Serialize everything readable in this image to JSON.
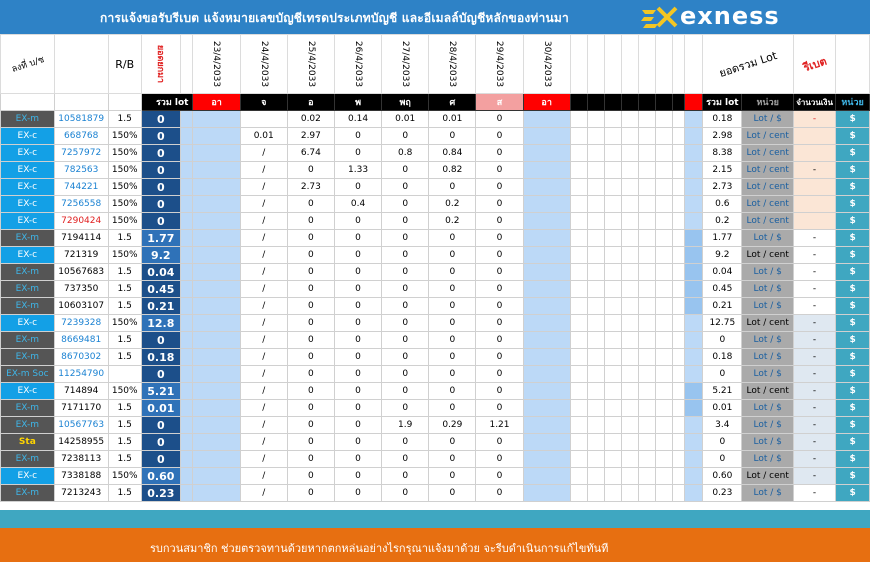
{
  "header": {
    "title": "การแจ้งขอรับรีเบต  แจ้งหมายเลขบัญชีเทรดประเภทบัญชี  และอีเมลล์บัญชีหลักของท่านมา",
    "brand": "exness",
    "logo_icon": "exness-logo-icon"
  },
  "columns": {
    "type": "ลงที่ บ/ช",
    "rb": "R/B",
    "balance": "ยอดยกมา",
    "dates": [
      "23/4/2033",
      "24/4/2033",
      "25/4/2033",
      "26/4/2033",
      "27/4/2033",
      "28/4/2033",
      "29/4/2033",
      "30/4/2033"
    ],
    "total_lot_vertical": "ยอดรวม Lot",
    "rebate": "รีเบต",
    "sub": {
      "sum_lot": "รวม lot",
      "days": [
        "อา",
        "จ",
        "อ",
        "พ",
        "พฤ",
        "ศ",
        "ส",
        "อา"
      ],
      "sum_lot2": "รวม lot",
      "unit": "หน่วย",
      "amount": "จำนวนเงิน",
      "unit2": "หน่วย"
    }
  },
  "rows": [
    {
      "type": "EX-m",
      "acct": "10581879",
      "rb": "1.5",
      "total": "0",
      "d": [
        "",
        "",
        "0.02",
        "0.14",
        "0.01",
        "0.01",
        "0",
        ""
      ],
      "sum": "0.18",
      "unit": "Lot / $",
      "amt": "-",
      "cur": "$"
    },
    {
      "type": "EX-c",
      "acct": "668768",
      "rb": "150%",
      "total": "0",
      "d": [
        "",
        "0.01",
        "2.97",
        "0",
        "0",
        "0",
        "0",
        ""
      ],
      "sum": "2.98",
      "unit": "Lot / cent",
      "amt": "",
      "cur": "$"
    },
    {
      "type": "EX-c",
      "acct": "7257972",
      "rb": "150%",
      "total": "0",
      "d": [
        "",
        "/",
        "6.74",
        "0",
        "0.8",
        "0.84",
        "0",
        ""
      ],
      "sum": "8.38",
      "unit": "Lot / cent",
      "amt": "",
      "cur": "$"
    },
    {
      "type": "EX-c",
      "acct": "782563",
      "rb": "150%",
      "total": "0",
      "d": [
        "",
        "/",
        "0",
        "1.33",
        "0",
        "0.82",
        "0",
        ""
      ],
      "sum": "2.15",
      "unit": "Lot / cent",
      "amt": "-",
      "cur": "$"
    },
    {
      "type": "EX-c",
      "acct": "744221",
      "rb": "150%",
      "total": "0",
      "d": [
        "",
        "/",
        "2.73",
        "0",
        "0",
        "0",
        "0",
        ""
      ],
      "sum": "2.73",
      "unit": "Lot / cent",
      "amt": "",
      "cur": "$"
    },
    {
      "type": "EX-c",
      "acct": "7256558",
      "rb": "150%",
      "total": "0",
      "d": [
        "",
        "/",
        "0",
        "0.4",
        "0",
        "0.2",
        "0",
        ""
      ],
      "sum": "0.6",
      "unit": "Lot / cent",
      "amt": "",
      "cur": "$"
    },
    {
      "type": "EX-c",
      "acct": "7290424",
      "rb": "150%",
      "total": "0",
      "d": [
        "",
        "/",
        "0",
        "0",
        "0",
        "0.2",
        "0",
        ""
      ],
      "sum": "0.2",
      "unit": "Lot / cent",
      "amt": "",
      "cur": "$"
    },
    {
      "type": "EX-m",
      "acct": "7194114",
      "rb": "1.5",
      "total": "1.77",
      "d": [
        "",
        "/",
        "0",
        "0",
        "0",
        "0",
        "0",
        ""
      ],
      "sum": "1.77",
      "unit": "Lot / $",
      "amt": "-",
      "cur": "$"
    },
    {
      "type": "EX-c",
      "acct": "721319",
      "rb": "150%",
      "total": "9.2",
      "d": [
        "",
        "/",
        "0",
        "0",
        "0",
        "0",
        "0",
        ""
      ],
      "sum": "9.2",
      "unit": "Lot / cent",
      "amt": "-",
      "cur": "$"
    },
    {
      "type": "EX-m",
      "acct": "10567683",
      "rb": "1.5",
      "total": "0.04",
      "d": [
        "",
        "/",
        "0",
        "0",
        "0",
        "0",
        "0",
        ""
      ],
      "sum": "0.04",
      "unit": "Lot / $",
      "amt": "-",
      "cur": "$"
    },
    {
      "type": "EX-m",
      "acct": "737350",
      "rb": "1.5",
      "total": "0.45",
      "d": [
        "",
        "/",
        "0",
        "0",
        "0",
        "0",
        "0",
        ""
      ],
      "sum": "0.45",
      "unit": "Lot / $",
      "amt": "-",
      "cur": "$"
    },
    {
      "type": "EX-m",
      "acct": "10603107",
      "rb": "1.5",
      "total": "0.21",
      "d": [
        "",
        "/",
        "0",
        "0",
        "0",
        "0",
        "0",
        ""
      ],
      "sum": "0.21",
      "unit": "Lot / $",
      "amt": "-",
      "cur": "$"
    },
    {
      "type": "EX-c",
      "acct": "7239328",
      "rb": "150%",
      "total": "12.8",
      "d": [
        "",
        "/",
        "0",
        "0",
        "0",
        "0",
        "0",
        ""
      ],
      "sum": "12.75",
      "unit": "Lot / cent",
      "amt": "-",
      "cur": "$"
    },
    {
      "type": "EX-m",
      "acct": "8669481",
      "rb": "1.5",
      "total": "0",
      "d": [
        "",
        "/",
        "0",
        "0",
        "0",
        "0",
        "0",
        ""
      ],
      "sum": "0",
      "unit": "Lot / $",
      "amt": "-",
      "cur": "$"
    },
    {
      "type": "EX-m",
      "acct": "8670302",
      "rb": "1.5",
      "total": "0.18",
      "d": [
        "",
        "/",
        "0",
        "0",
        "0",
        "0",
        "0",
        ""
      ],
      "sum": "0.18",
      "unit": "Lot / $",
      "amt": "-",
      "cur": "$"
    },
    {
      "type": "EX-m Soc",
      "acct": "11254790",
      "rb": "",
      "total": "0",
      "d": [
        "",
        "/",
        "0",
        "0",
        "0",
        "0",
        "0",
        ""
      ],
      "sum": "0",
      "unit": "Lot / $",
      "amt": "-",
      "cur": "$"
    },
    {
      "type": "EX-c",
      "acct": "714894",
      "rb": "150%",
      "total": "5.21",
      "d": [
        "",
        "/",
        "0",
        "0",
        "0",
        "0",
        "0",
        ""
      ],
      "sum": "5.21",
      "unit": "Lot / cent",
      "amt": "-",
      "cur": "$"
    },
    {
      "type": "EX-m",
      "acct": "7171170",
      "rb": "1.5",
      "total": "0.01",
      "d": [
        "",
        "/",
        "0",
        "0",
        "0",
        "0",
        "0",
        ""
      ],
      "sum": "0.01",
      "unit": "Lot / $",
      "amt": "-",
      "cur": "$"
    },
    {
      "type": "EX-m",
      "acct": "10567763",
      "rb": "1.5",
      "total": "0",
      "d": [
        "",
        "/",
        "0",
        "0",
        "1.9",
        "0.29",
        "1.21",
        ""
      ],
      "sum": "3.4",
      "unit": "Lot / $",
      "amt": "-",
      "cur": "$"
    },
    {
      "type": "Sta",
      "acct": "14258955",
      "rb": "1.5",
      "total": "0",
      "d": [
        "",
        "/",
        "0",
        "0",
        "0",
        "0",
        "0",
        ""
      ],
      "sum": "0",
      "unit": "Lot / $",
      "amt": "-",
      "cur": "$"
    },
    {
      "type": "EX-m",
      "acct": "7238113",
      "rb": "1.5",
      "total": "0",
      "d": [
        "",
        "/",
        "0",
        "0",
        "0",
        "0",
        "0",
        ""
      ],
      "sum": "0",
      "unit": "Lot / $",
      "amt": "-",
      "cur": "$"
    },
    {
      "type": "EX-c",
      "acct": "7338188",
      "rb": "150%",
      "total": "0.60",
      "d": [
        "",
        "/",
        "0",
        "0",
        "0",
        "0",
        "0",
        ""
      ],
      "sum": "0.60",
      "unit": "Lot / cent",
      "amt": "-",
      "cur": "$"
    },
    {
      "type": "EX-m",
      "acct": "7213243",
      "rb": "1.5",
      "total": "0.23",
      "d": [
        "",
        "/",
        "0",
        "0",
        "0",
        "0",
        "0",
        ""
      ],
      "sum": "0.23",
      "unit": "Lot / $",
      "amt": "-",
      "cur": "$"
    }
  ],
  "footer": {
    "message": "รบกวนสมาชิก  ช่วยตรวจทานด้วยหากตกหล่นอย่างไรกรุณาแจ้งมาด้วย  จะรีบดำเนินการแก้ไขทันที"
  }
}
